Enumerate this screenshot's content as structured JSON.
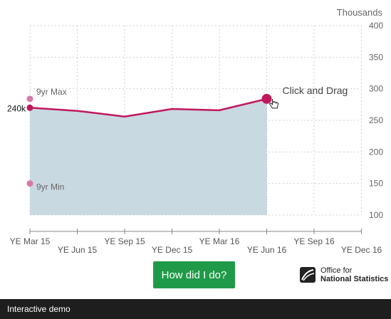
{
  "chart_data": {
    "type": "line",
    "ylabel_units": "Thousands",
    "ylim": [
      100,
      400
    ],
    "yticks": [
      "100",
      "150",
      "200",
      "250",
      "300",
      "350",
      "400"
    ],
    "x_tick_labels": [
      "YE Mar 15",
      "YE Jun 15",
      "YE Sep 15",
      "YE Dec 15",
      "YE Mar 16",
      "YE Jun 16",
      "YE Sep 16",
      "YE Dec 16"
    ],
    "series": [
      {
        "values": [
          270,
          265,
          256,
          268,
          266,
          284
        ]
      }
    ],
    "start_label": "240k",
    "max_marker": {
      "label": "9yr Max",
      "value": 284
    },
    "min_marker": {
      "label": "9yr Min",
      "value": 150
    },
    "drag_label": "Click and Drag",
    "grid": true,
    "colors": {
      "line": "#c0175d",
      "area": "#c9d9e1",
      "marker": "#d67aa8",
      "grid": "#d0d0d0"
    }
  },
  "button": {
    "label": "How did I do?"
  },
  "logo": {
    "line1": "Office for",
    "line2": "National Statistics"
  },
  "footer": {
    "label": "Interactive demo"
  }
}
